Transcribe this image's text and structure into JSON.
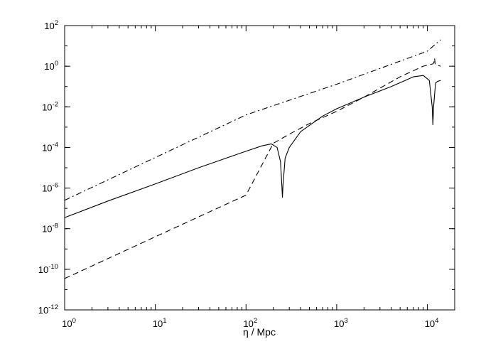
{
  "chart_data": {
    "type": "line",
    "title": "",
    "xlabel": "η / Mpc",
    "ylabel": "",
    "xscale": "log",
    "yscale": "log",
    "xlim": [
      1,
      20000
    ],
    "ylim": [
      1e-12,
      100
    ],
    "grid": false,
    "legend": "none",
    "x_ticks": [
      {
        "value": 1,
        "base": "10",
        "exp": "0"
      },
      {
        "value": 10,
        "base": "10",
        "exp": "1"
      },
      {
        "value": 100,
        "base": "10",
        "exp": "2"
      },
      {
        "value": 1000,
        "base": "10",
        "exp": "3"
      },
      {
        "value": 10000,
        "base": "10",
        "exp": "4"
      }
    ],
    "y_ticks": [
      {
        "value": 1e-12,
        "base": "10",
        "exp": "-12"
      },
      {
        "value": 1e-10,
        "base": "10",
        "exp": "-10"
      },
      {
        "value": 1e-08,
        "base": "10",
        "exp": "-8"
      },
      {
        "value": 1e-06,
        "base": "10",
        "exp": "-6"
      },
      {
        "value": 0.0001,
        "base": "10",
        "exp": "-4"
      },
      {
        "value": 0.01,
        "base": "10",
        "exp": "-2"
      },
      {
        "value": 1,
        "base": "10",
        "exp": "0"
      },
      {
        "value": 100,
        "base": "10",
        "exp": "2"
      }
    ],
    "series": [
      {
        "style": "solid",
        "color": "#000000",
        "points": [
          [
            1,
            3.5e-08
          ],
          [
            3,
            2.3e-07
          ],
          [
            10,
            1.6e-06
          ],
          [
            30,
            1e-05
          ],
          [
            100,
            6.5e-05
          ],
          [
            150,
            0.00012
          ],
          [
            190,
            0.00015
          ],
          [
            220,
            0.0001
          ],
          [
            240,
            2e-05
          ],
          [
            248,
            1.5e-06
          ],
          [
            252,
            3.5e-07
          ],
          [
            256,
            1.5e-06
          ],
          [
            270,
            3e-05
          ],
          [
            300,
            0.0001
          ],
          [
            400,
            0.0006
          ],
          [
            700,
            0.0035
          ],
          [
            1000,
            0.008
          ],
          [
            2000,
            0.03
          ],
          [
            4000,
            0.1
          ],
          [
            7000,
            0.3
          ],
          [
            9000,
            0.35
          ],
          [
            10500,
            0.2
          ],
          [
            11300,
            0.01
          ],
          [
            11500,
            0.0013
          ],
          [
            11700,
            0.01
          ],
          [
            12300,
            0.15
          ],
          [
            13000,
            0.18
          ],
          [
            14000,
            0.2
          ]
        ]
      },
      {
        "style": "dashed",
        "color": "#000000",
        "points": [
          [
            1,
            3.5e-11
          ],
          [
            10,
            4e-09
          ],
          [
            100,
            4.5e-07
          ],
          [
            200,
            0.00016
          ],
          [
            300,
            0.00045
          ],
          [
            500,
            0.0015
          ],
          [
            1000,
            0.006
          ],
          [
            2000,
            0.03
          ],
          [
            5000,
            0.3
          ],
          [
            9000,
            1.0
          ],
          [
            11500,
            1.3
          ],
          [
            11800,
            1.5
          ],
          [
            12000,
            2.5
          ],
          [
            12200,
            1.2
          ],
          [
            13000,
            1.1
          ],
          [
            14000,
            1.0
          ]
        ]
      },
      {
        "style": "dashdot",
        "color": "#000000",
        "points": [
          [
            1,
            2.5e-07
          ],
          [
            10,
            3.2e-05
          ],
          [
            100,
            0.004
          ],
          [
            1000,
            0.13
          ],
          [
            10000,
            5.5
          ],
          [
            14000,
            20
          ]
        ]
      }
    ]
  }
}
